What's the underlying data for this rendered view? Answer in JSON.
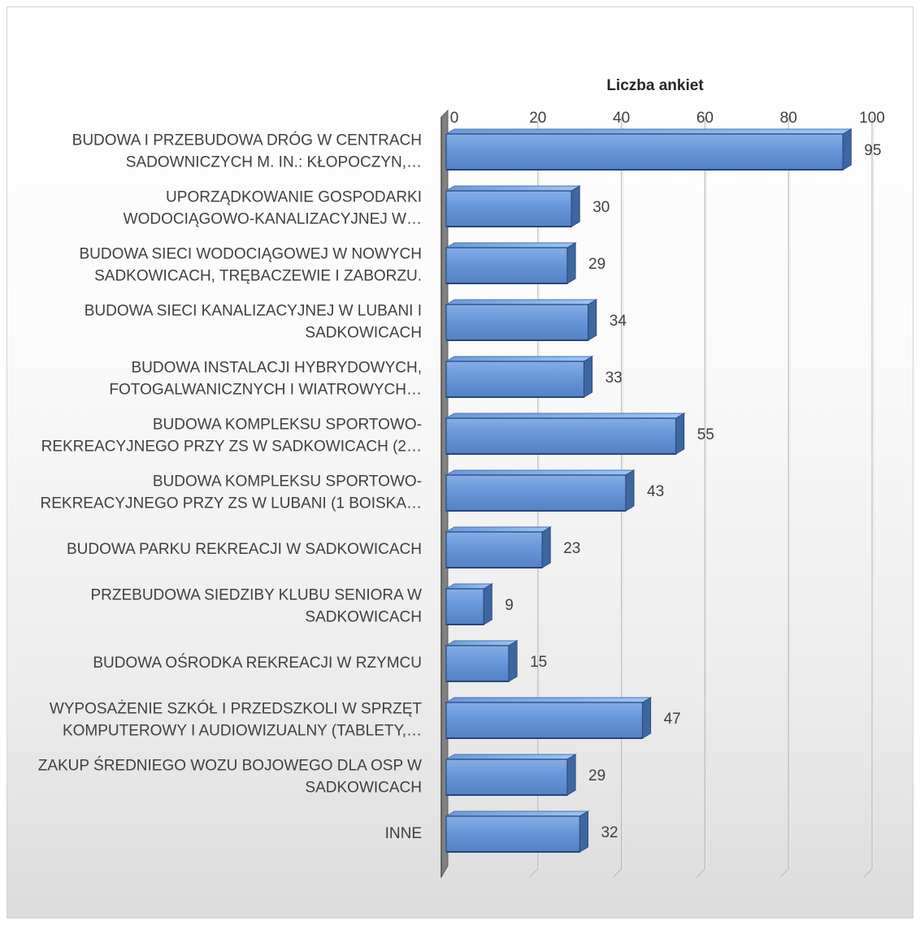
{
  "chart_data": {
    "type": "bar",
    "orientation": "horizontal",
    "style": "3d-bevel",
    "axis_title": "Liczba ankiet",
    "axis_position": "top",
    "xlim": [
      0,
      100
    ],
    "ticks": [
      "0",
      "20",
      "40",
      "60",
      "80",
      "100"
    ],
    "tick_values": [
      0,
      20,
      40,
      60,
      80,
      100
    ],
    "grid": true,
    "legend": "none",
    "bar_color": "#5b8fd6",
    "categories": [
      [
        "BUDOWA I PRZEBUDOWA DRÓG W CENTRACH",
        "SADOWNICZYCH M. IN.: KŁOPOCZYN,…"
      ],
      [
        "UPORZĄDKOWANIE GOSPODARKI",
        "WODOCIĄGOWO-KANALIZACYJNEJ W…"
      ],
      [
        "BUDOWA SIECI WODOCIĄGOWEJ W NOWYCH",
        "SADKOWICACH, TRĘBACZEWIE I ZABORZU."
      ],
      [
        "BUDOWA SIECI KANALIZACYJNEJ W LUBANI I",
        "SADKOWICACH"
      ],
      [
        "BUDOWA INSTALACJI HYBRYDOWYCH,",
        "FOTOGALWANICZNYCH I WIATROWYCH…"
      ],
      [
        "BUDOWA KOMPLEKSU SPORTOWO-",
        "REKREACYJNEGO PRZY ZS W SADKOWICACH (2…"
      ],
      [
        "BUDOWA KOMPLEKSU SPORTOWO-",
        "REKREACYJNEGO PRZY ZS W LUBANI (1 BOISKA…"
      ],
      [
        "BUDOWA PARKU REKREACJI W SADKOWICACH"
      ],
      [
        "PRZEBUDOWA SIEDZIBY KLUBU SENIORA W",
        "SADKOWICACH"
      ],
      [
        "BUDOWA OŚRODKA REKREACJI W RZYMCU"
      ],
      [
        "WYPOSAŻENIE SZKÓŁ I PRZEDSZKOLI W SPRZĘT",
        "KOMPUTEROWY I AUDIOWIZUALNY (TABLETY,…"
      ],
      [
        "ZAKUP ŚREDNIEGO WOZU BOJOWEGO DLA OSP W",
        "SADKOWICACH"
      ],
      [
        "INNE"
      ]
    ],
    "values": [
      95,
      30,
      29,
      34,
      33,
      55,
      43,
      23,
      9,
      15,
      47,
      29,
      32
    ]
  }
}
